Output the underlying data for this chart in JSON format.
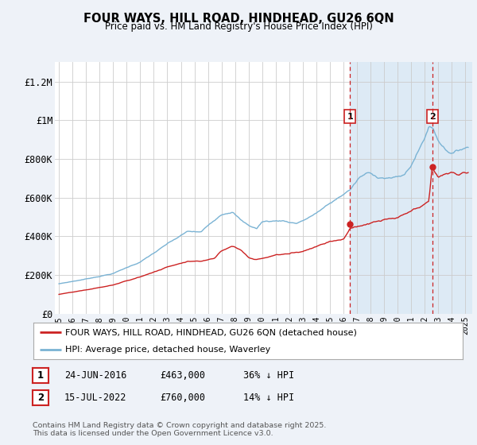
{
  "title": "FOUR WAYS, HILL ROAD, HINDHEAD, GU26 6QN",
  "subtitle": "Price paid vs. HM Land Registry's House Price Index (HPI)",
  "ylabel_ticks": [
    "£0",
    "£200K",
    "£400K",
    "£600K",
    "£800K",
    "£1M",
    "£1.2M"
  ],
  "ytick_values": [
    0,
    200000,
    400000,
    600000,
    800000,
    1000000,
    1200000
  ],
  "ylim": [
    0,
    1300000
  ],
  "hpi_color": "#7ab3d4",
  "price_color": "#cc2222",
  "vline_color": "#cc2222",
  "legend_line1": "FOUR WAYS, HILL ROAD, HINDHEAD, GU26 6QN (detached house)",
  "legend_line2": "HPI: Average price, detached house, Waverley",
  "sale1_date": "24-JUN-2016",
  "sale1_price": "£463,000",
  "sale1_hpi": "36% ↓ HPI",
  "sale1_x": 2016.47,
  "sale1_y": 463000,
  "sale2_date": "15-JUL-2022",
  "sale2_price": "£760,000",
  "sale2_hpi": "14% ↓ HPI",
  "sale2_x": 2022.54,
  "sale2_y": 760000,
  "footer": "Contains HM Land Registry data © Crown copyright and database right 2025.\nThis data is licensed under the Open Government Licence v3.0.",
  "bg_color": "#eef2f8",
  "plot_bg_color": "#ffffff",
  "shade_color": "#ddeaf5",
  "xlim_left": 1994.7,
  "xlim_right": 2025.5
}
